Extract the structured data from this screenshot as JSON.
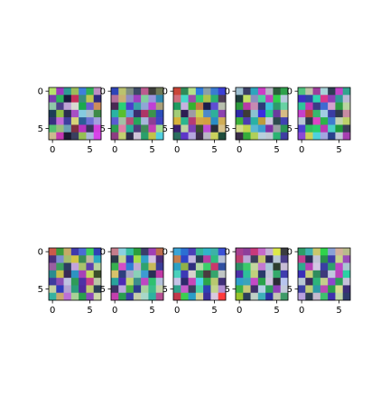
{
  "figure": {
    "background": "#ffffff"
  },
  "chart_data": [
    {
      "type": "heatmap",
      "grid": [
        7,
        7
      ],
      "xticks": [
        "0",
        "5"
      ],
      "yticks": [
        "0",
        "5"
      ],
      "cells": [
        "#b6e36b",
        "#9c39c1",
        "#2e9a94",
        "#9bbd5b",
        "#3f7fdb",
        "#2db155",
        "#bd8ec3",
        "#7a3db0",
        "#2ab35b",
        "#1a1a3c",
        "#c42f5a",
        "#3a8d7c",
        "#c0c74f",
        "#2d2a7e",
        "#8fc7a9",
        "#4d3f8a",
        "#bfa3d6",
        "#d8d9d1",
        "#1aa94c",
        "#6d5bd0",
        "#cd8d5c",
        "#1c3d56",
        "#8fbf44",
        "#2a2d4e",
        "#a74fc4",
        "#86cbe0",
        "#a9c0c6",
        "#3d8a48",
        "#36307e",
        "#c26ad6",
        "#3d3e9d",
        "#d6d37a",
        "#2b5d96",
        "#6e6fd4",
        "#a3a1dd",
        "#54c070",
        "#99bc7c",
        "#6aa0b4",
        "#7d2f3f",
        "#b833c0",
        "#38355a",
        "#d43fdc",
        "#cbb98f",
        "#c436b1",
        "#1c1a30",
        "#3a3f5f",
        "#95bf53",
        "#a9b7da",
        "#d744e9"
      ]
    },
    {
      "type": "heatmap",
      "grid": [
        7,
        7
      ],
      "xticks": [
        "0",
        "5"
      ],
      "yticks": [
        "0",
        "5"
      ],
      "cells": [
        "#2e44b8",
        "#bbc26e",
        "#7e8e83",
        "#3d4a67",
        "#bc5b8f",
        "#3e3f3b",
        "#6f7a56",
        "#b36e9b",
        "#c8af73",
        "#8d8ac8",
        "#a13fc2",
        "#7fcf9d",
        "#9a94dd",
        "#2f8ab1",
        "#4a2a53",
        "#2ad076",
        "#4b3ecd",
        "#3aa1a8",
        "#8fa6d6",
        "#bf3fd7",
        "#aa9f7a",
        "#2ab3a4",
        "#58bf2e",
        "#5fa1da",
        "#3a2e6e",
        "#ae3566",
        "#3c944c",
        "#2c4ebb",
        "#5b5bd2",
        "#a4c1a5",
        "#b64e79",
        "#26a65b",
        "#a7b6da",
        "#8c3f94",
        "#3f46c0",
        "#2d9e4f",
        "#e07fa7",
        "#2aaf97",
        "#4d3c7b",
        "#3f8a58",
        "#c440b6",
        "#a4dd91",
        "#8d3d82",
        "#c3cf70",
        "#2e2c4a",
        "#d0c5d8",
        "#2a9e6b",
        "#c3c24a",
        "#52d0e0"
      ]
    },
    {
      "type": "heatmap",
      "grid": [
        7,
        7
      ],
      "xticks": [
        "0",
        "5"
      ],
      "yticks": [
        "0",
        "5"
      ],
      "cells": [
        "#c94537",
        "#2f8b57",
        "#b6e08a",
        "#2c7ee0",
        "#8aa0a7",
        "#3a7bd1",
        "#3c3fd6",
        "#d06c7b",
        "#45d9c9",
        "#9e4da9",
        "#31cd71",
        "#aec34d",
        "#2ab06f",
        "#4e3c56",
        "#1f9a5f",
        "#c7b1df",
        "#35b22f",
        "#c67a46",
        "#1c1d4b",
        "#5f4dd2",
        "#b8bfae",
        "#a3cd77",
        "#2d1d53",
        "#9e9ba4",
        "#c8d44f",
        "#4e88c9",
        "#2fb09a",
        "#8d41b0",
        "#d6b23a",
        "#2bb58f",
        "#b63a74",
        "#d1a548",
        "#d2a040",
        "#2c8cc4",
        "#d0ad56",
        "#3b1f6e",
        "#c1d3a0",
        "#7c3fb5",
        "#3a4e2e",
        "#bd4cd6",
        "#2a2c39",
        "#d7c18a",
        "#2b6e5f",
        "#5e36c8",
        "#b5a7de",
        "#3e2f4a",
        "#b9b7c6",
        "#cad25d",
        "#1f4d3b"
      ]
    },
    {
      "type": "heatmap",
      "grid": [
        7,
        7
      ],
      "xticks": [
        "0",
        "5"
      ],
      "yticks": [
        "0",
        "5"
      ],
      "cells": [
        "#9cbfd0",
        "#3b3f65",
        "#2ea5bd",
        "#cc3ec6",
        "#b8b5c7",
        "#2b5e3a",
        "#2ea14b",
        "#1f3a3c",
        "#c2e164",
        "#8b8fbe",
        "#4ad3a0",
        "#c13fbe",
        "#30d04b",
        "#b6c9dd",
        "#2d9a3c",
        "#b73aa6",
        "#c78ab2",
        "#2e3a78",
        "#3cc0da",
        "#2d9a6c",
        "#68d2a4",
        "#2f2aa7",
        "#3e3c36",
        "#8ac2d1",
        "#3a2be0",
        "#2cc78b",
        "#6b3b9d",
        "#d6bc85",
        "#3eb23a",
        "#4e3bb0",
        "#2ab2a4",
        "#bc9c3d",
        "#cbc6dc",
        "#2e4a4e",
        "#4041b3",
        "#d4dc8a",
        "#c1d34e",
        "#5bb7d0",
        "#3b9ccf",
        "#7e2fa4",
        "#9c9fa5",
        "#2b9555",
        "#3b2d49",
        "#36ad3b",
        "#b0cf58",
        "#b8d0dc",
        "#bfc8d4",
        "#2bb372",
        "#3f3ea2"
      ]
    },
    {
      "type": "heatmap",
      "grid": [
        7,
        7
      ],
      "xticks": [
        "0",
        "5"
      ],
      "yticks": [
        "0",
        "5"
      ],
      "cells": [
        "#50c47e",
        "#bdc2a6",
        "#9d3e9c",
        "#a6d3d8",
        "#2c3d53",
        "#c243c7",
        "#31a48f",
        "#3e2ec6",
        "#2d45a2",
        "#2fd4b0",
        "#d8378c",
        "#8c3eb5",
        "#2f9c98",
        "#bbb9d4",
        "#2ec49a",
        "#c138b2",
        "#3b3a87",
        "#3f6ad1",
        "#d4a3cf",
        "#2c9e45",
        "#b8d6a0",
        "#c640cb",
        "#b34c3a",
        "#36b86e",
        "#a1cde3",
        "#3a3da3",
        "#303b4c",
        "#c78ba2",
        "#b9c6d6",
        "#2a3a4f",
        "#dd45c3",
        "#2bb34a",
        "#3e7bcf",
        "#c4d2b1",
        "#bcd06a",
        "#4d3fd2",
        "#32bd62",
        "#2ad06a",
        "#bb37b2",
        "#4acfc5",
        "#1f9a3a",
        "#3c3d58",
        "#8b48d6",
        "#cbd058",
        "#4fd2dd",
        "#a2a7e0",
        "#2a3f8c",
        "#c1c5d8",
        "#a63fb1"
      ]
    },
    {
      "type": "heatmap",
      "grid": [
        7,
        7
      ],
      "xticks": [
        "0",
        "5"
      ],
      "yticks": [
        "0",
        "5"
      ],
      "cells": [
        "#cc5a4a",
        "#3b9b3c",
        "#c5aa67",
        "#3f39ac",
        "#4b6bd5",
        "#3bd05c",
        "#2f3fb6",
        "#4c2e7b",
        "#7b8fd1",
        "#a4bd6e",
        "#d2c446",
        "#3a8c55",
        "#c0b99b",
        "#2aa9c0",
        "#9a5fa0",
        "#3aa05e",
        "#2c3b62",
        "#c3a4de",
        "#a9c36c",
        "#5d3fae",
        "#b6d3a0",
        "#2b8c8f",
        "#c7bd4d",
        "#3a2a56",
        "#2e93c2",
        "#a741b8",
        "#c5d95f",
        "#3b4e2b",
        "#3d3b9e",
        "#8b4db4",
        "#bfc2e1",
        "#2e9b59",
        "#4d32a5",
        "#c53f8b",
        "#b9c8a5",
        "#c5d0a1",
        "#2d3abc",
        "#b3a2d2",
        "#2b9e7c",
        "#4f2b9c",
        "#c2cc71",
        "#2a3f56",
        "#36b1a1",
        "#c9a86f",
        "#bd6fd6",
        "#a9d196",
        "#2a9f4c",
        "#8d47bb",
        "#cdd8a9"
      ]
    },
    {
      "type": "heatmap",
      "grid": [
        7,
        7
      ],
      "xticks": [
        "0",
        "5"
      ],
      "yticks": [
        "0",
        "5"
      ],
      "cells": [
        "#c47d8c",
        "#8ad0e0",
        "#36bfa3",
        "#2b9f3d",
        "#3a3d6a",
        "#a13fb6",
        "#bd6d4d",
        "#2a3a4b",
        "#c4d48f",
        "#2f39b0",
        "#a5dd4a",
        "#31a0c8",
        "#d4c0e5",
        "#4b2c7a",
        "#36b04f",
        "#d24fc6",
        "#2e7fd4",
        "#bfa9d2",
        "#2fa36e",
        "#c8b95a",
        "#3b3c98",
        "#d9c36b",
        "#2e3f7e",
        "#a9a7c7",
        "#8ad0b8",
        "#3d9bd2",
        "#2b2f55",
        "#c039a5",
        "#2aa29c",
        "#4c2ab5",
        "#c2d66c",
        "#3b8f8b",
        "#bd48c3",
        "#2fc16f",
        "#b2c0dc",
        "#3e2f63",
        "#bba8e0",
        "#48b043",
        "#2c3b8d",
        "#a7d29d",
        "#3cbe8b",
        "#c5d0a9",
        "#c43fae",
        "#2a9e4f",
        "#3a3ea8",
        "#c7cfaa",
        "#a8d7c9",
        "#2fb2a0",
        "#b64f92"
      ]
    },
    {
      "type": "heatmap",
      "grid": [
        7,
        7
      ],
      "xticks": [
        "0",
        "5"
      ],
      "yticks": [
        "0",
        "5"
      ],
      "cells": [
        "#3aa4d6",
        "#2c6fd2",
        "#4a3fb8",
        "#36b596",
        "#30b4c9",
        "#3db2a7",
        "#3a51d6",
        "#c57d4e",
        "#2f43c7",
        "#c3b6e0",
        "#2b3b58",
        "#b63fa2",
        "#2fbd7e",
        "#b6c0d6",
        "#2ca0c3",
        "#8fb147",
        "#2e2f7f",
        "#b0d8a3",
        "#3acf6b",
        "#c9386b",
        "#2f4fa0",
        "#4ad1bd",
        "#3d39b5",
        "#d7d2cc",
        "#2aa15e",
        "#4a3a3f",
        "#36a46c",
        "#c0c5c5",
        "#c6c3e7",
        "#2d2a6b",
        "#c846b7",
        "#4dd1ea",
        "#2ba44a",
        "#b8c870",
        "#3f2f78",
        "#2fa28c",
        "#c65bcb",
        "#3c3d5e",
        "#4ad1a5",
        "#2e3fb4",
        "#c2d48c",
        "#b28fd3",
        "#c13a4a",
        "#3bcf4f",
        "#2b9dc7",
        "#d4d392",
        "#3b2f9b",
        "#d8c8df",
        "#ff3b3b"
      ]
    },
    {
      "type": "heatmap",
      "grid": [
        7,
        7
      ],
      "xticks": [
        "0",
        "5"
      ],
      "yticks": [
        "0",
        "5"
      ],
      "cells": [
        "#a73f91",
        "#8d3e9a",
        "#c83a7b",
        "#c66acb",
        "#c4b0d6",
        "#dde84a",
        "#3a3b40",
        "#bd3f6f",
        "#bba6d6",
        "#3a3f5a",
        "#c5c46b",
        "#2b2a53",
        "#b9c7d4",
        "#4a3d8a",
        "#2d8f66",
        "#3acb6a",
        "#c4d69e",
        "#c37ad0",
        "#a5c6d7",
        "#2c3d2f",
        "#c7bdd6",
        "#4c2fa7",
        "#2dbf9a",
        "#c1d17c",
        "#2a3a6b",
        "#c0c3d6",
        "#35a96a",
        "#3f3cae",
        "#2fa0c9",
        "#3aa4b9",
        "#c34bc6",
        "#2aa149",
        "#cfc2dd",
        "#2c2b37",
        "#b8c5ef",
        "#3bb146",
        "#c8c978",
        "#3f2e68",
        "#b1d0e4",
        "#2c9f5b",
        "#8e3fb8",
        "#c2c9db",
        "#9ac42b",
        "#2d3e5a",
        "#c1d0c6",
        "#3eafb9",
        "#2b2fa5",
        "#c4c9b4",
        "#3e9a68"
      ]
    },
    {
      "type": "heatmap",
      "grid": [
        7,
        7
      ],
      "xticks": [
        "0",
        "5"
      ],
      "yticks": [
        "0",
        "5"
      ],
      "cells": [
        "#2e9d66",
        "#3fb1b0",
        "#c9c76b",
        "#2fd34b",
        "#8aa0d6",
        "#d4b09a",
        "#b9bb8b",
        "#c33d8f",
        "#2a2f58",
        "#c1c4d5",
        "#2b8d4d",
        "#3e3caa",
        "#c7d38a",
        "#9a4bb9",
        "#2fa98d",
        "#b63fb6",
        "#d3c6e4",
        "#3a3fa2",
        "#2fa06d",
        "#bd45c5",
        "#a9c6d2",
        "#3a2fb8",
        "#c7cf79",
        "#2f8c5e",
        "#3e3a7b",
        "#c0c6de",
        "#bb42ba",
        "#2bd0a4",
        "#b8c7d3",
        "#3a2c5f",
        "#2db47a",
        "#c3cf8b",
        "#8e45cc",
        "#2b9e58",
        "#c4c1da",
        "#3c3fa5",
        "#c0cd77",
        "#2d9aa6",
        "#b74ab3",
        "#2a9d4a",
        "#d9dc90",
        "#3b2d79",
        "#b7a1e0",
        "#2c3f52",
        "#c6bbcf",
        "#3ec06e",
        "#3f2fae",
        "#c0d8a6",
        "#2e3b6b"
      ]
    }
  ]
}
